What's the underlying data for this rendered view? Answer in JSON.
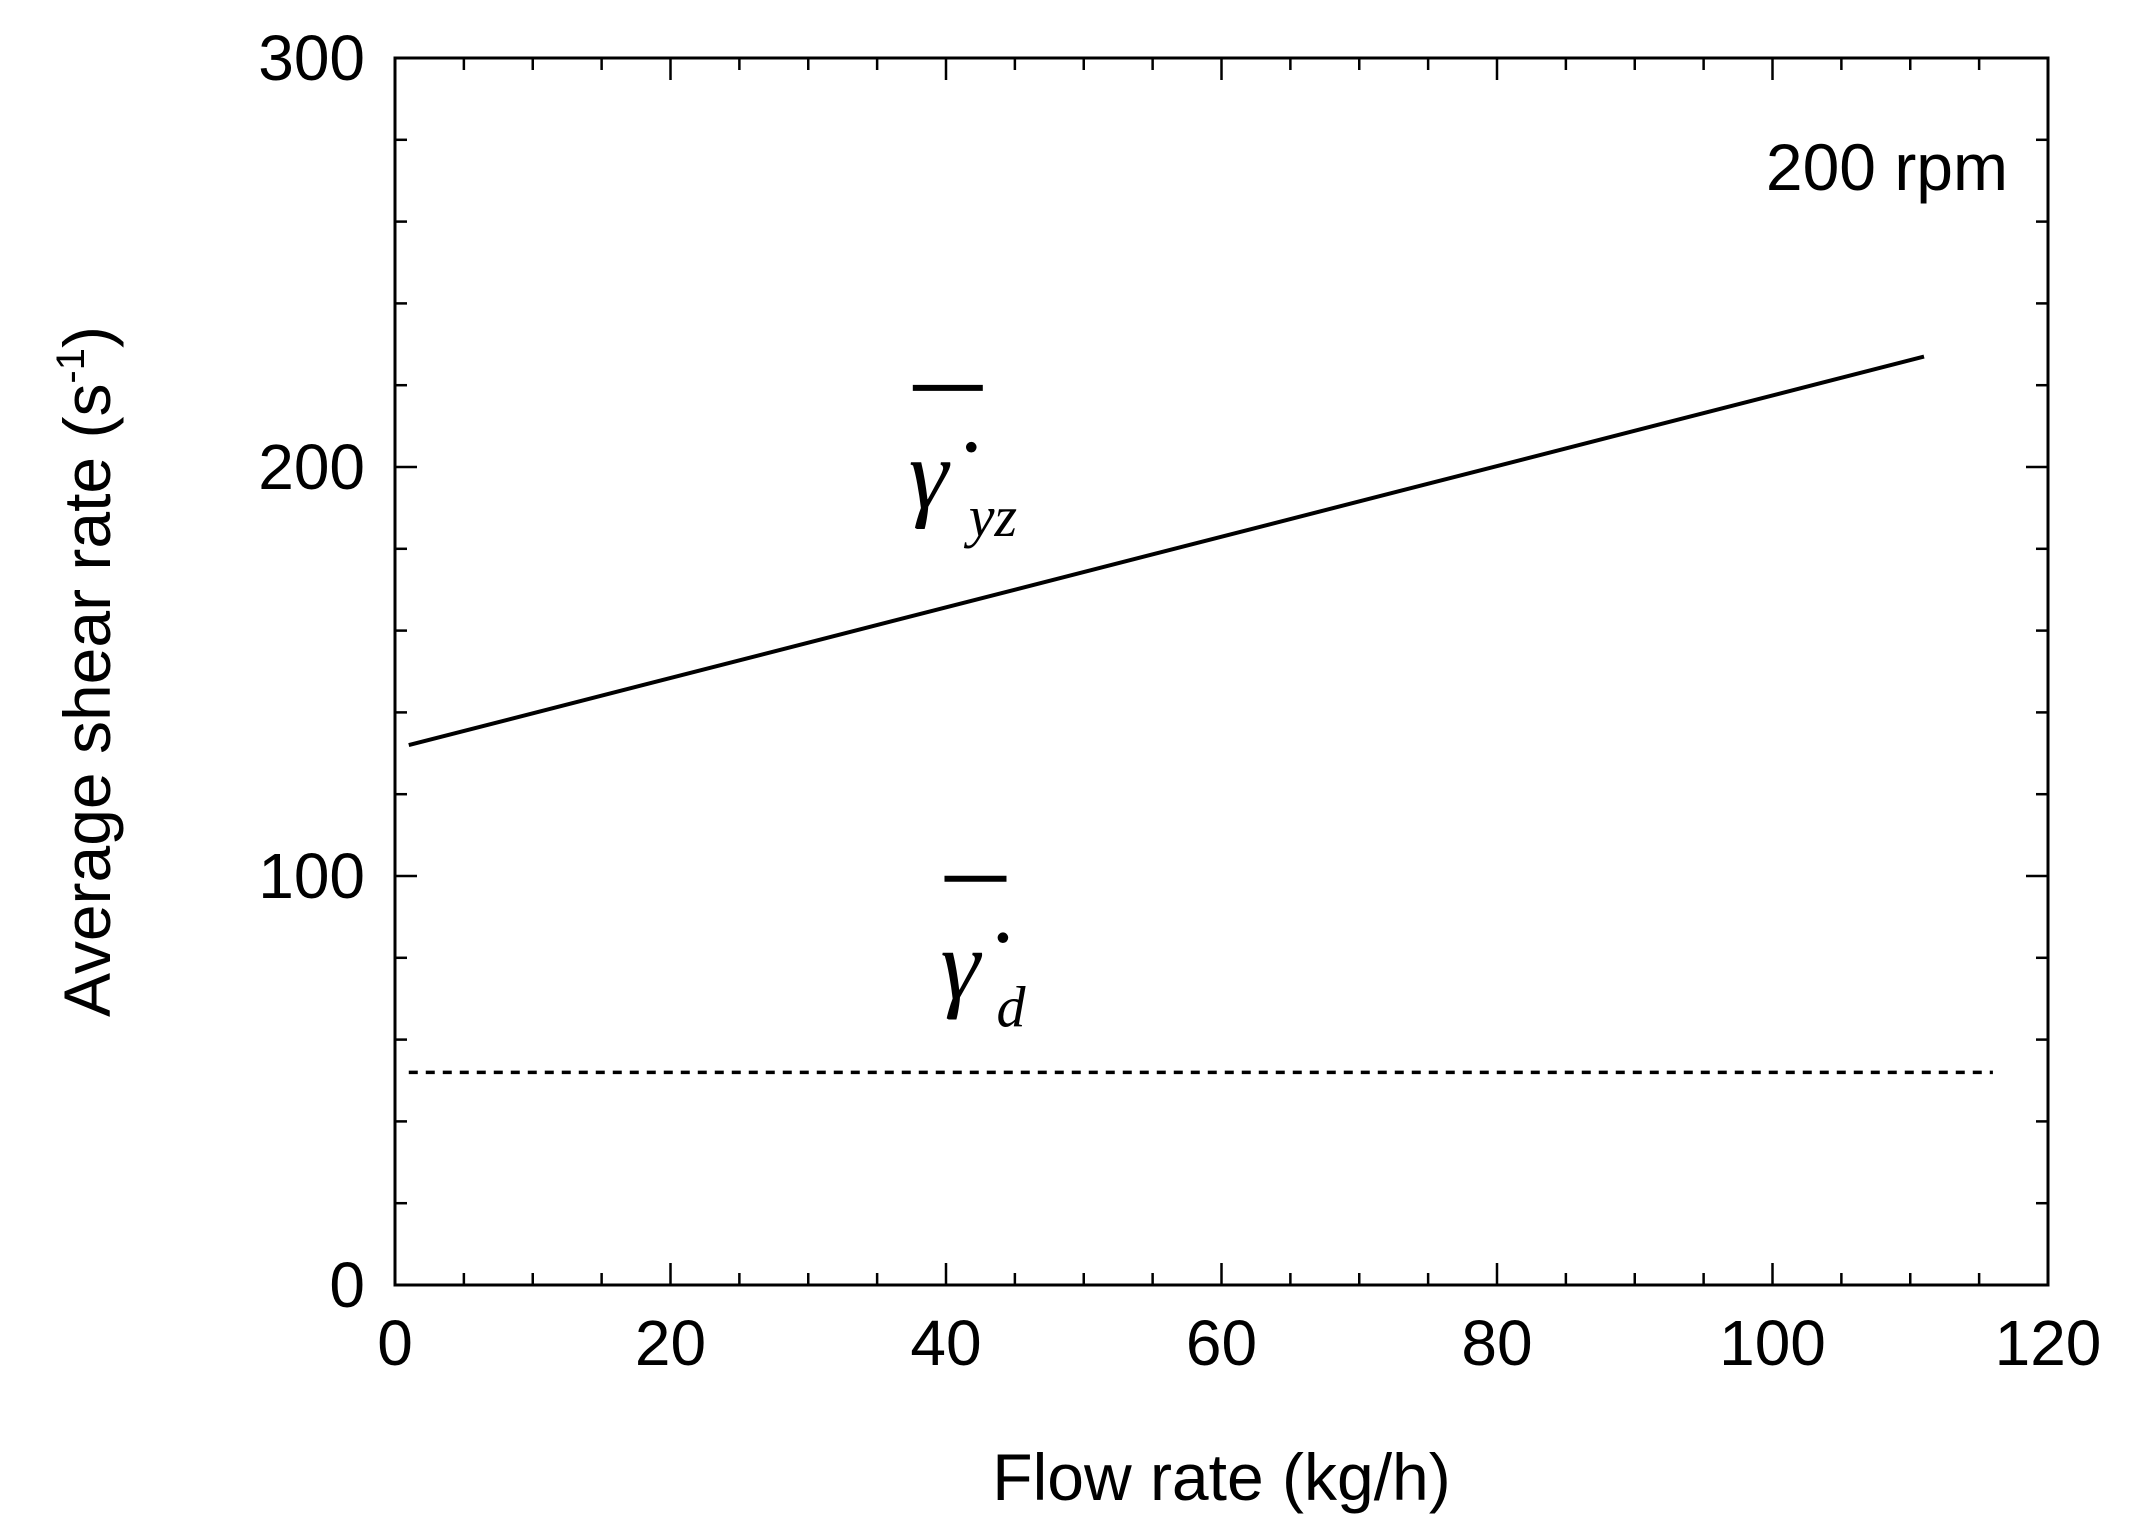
{
  "chart_data": {
    "type": "line",
    "title": "",
    "xlabel": "Flow rate (kg/h)",
    "ylabel": "Average shear rate (s-1)",
    "ylabel_parts": {
      "base": "Average shear rate (s",
      "sup": "-1",
      "close": ")"
    },
    "xlim": [
      0,
      120
    ],
    "ylim": [
      0,
      300
    ],
    "x_ticks": [
      0,
      20,
      40,
      60,
      80,
      100,
      120
    ],
    "y_ticks": [
      0,
      100,
      200,
      300
    ],
    "x_minor_step": 5,
    "y_minor_step": 20,
    "grid": false,
    "annotation": "200 rpm",
    "series": [
      {
        "label_symbol": "γ̇",
        "label_subscript": "yz",
        "style": "solid",
        "color": "#000000",
        "x": [
          1,
          111
        ],
        "y": [
          132,
          227
        ]
      },
      {
        "label_symbol": "γ̇",
        "label_subscript": "d",
        "style": "dotted",
        "color": "#000000",
        "x": [
          1,
          116
        ],
        "y": [
          52,
          52
        ]
      }
    ]
  }
}
